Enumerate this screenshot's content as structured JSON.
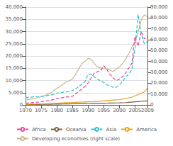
{
  "chart_data": {
    "type": "line",
    "x": [
      1970,
      1971,
      1972,
      1973,
      1974,
      1975,
      1976,
      1977,
      1978,
      1979,
      1980,
      1981,
      1982,
      1983,
      1984,
      1985,
      1986,
      1987,
      1988,
      1989,
      1990,
      1991,
      1992,
      1993,
      1994,
      1995,
      1996,
      1997,
      1998,
      1999,
      2000,
      2001,
      2002,
      2003,
      2004,
      2005,
      2006,
      2007,
      2008,
      2009
    ],
    "xlim": [
      1970,
      2009
    ],
    "xticks": [
      1970,
      1975,
      1980,
      1985,
      1990,
      1995,
      2000,
      2005,
      2009
    ],
    "ylim": [
      0,
      40000
    ],
    "yticks": [
      0,
      {
        "value": 5000,
        "label": "5,000"
      },
      {
        "value": 10000,
        "label": "10,000"
      },
      {
        "value": 15000,
        "label": "15,000"
      },
      {
        "value": 20000,
        "label": "20,000"
      },
      {
        "value": 25000,
        "label": "25,000"
      },
      {
        "value": 30000,
        "label": "30,000"
      },
      {
        "value": 35000,
        "label": "35,000"
      },
      {
        "value": 40000,
        "label": "40,000"
      }
    ],
    "y2lim": [
      0,
      90000
    ],
    "y2ticks": [
      0,
      {
        "value": 10000,
        "label": "10,000"
      },
      {
        "value": 20000,
        "label": "20,000"
      },
      {
        "value": 30000,
        "label": "30,000"
      },
      {
        "value": 40000,
        "label": "40,000"
      },
      {
        "value": 50000,
        "label": "50,000"
      },
      {
        "value": 60000,
        "label": "60,000"
      },
      {
        "value": 70000,
        "label": "70,000"
      },
      {
        "value": 80000,
        "label": "80,000"
      },
      {
        "value": 90000,
        "label": "90,000"
      }
    ],
    "grid": true,
    "legend": "bottom",
    "series": [
      {
        "name": "Africa",
        "color": "#e8429a",
        "line_style": "dashed",
        "values": [
          700,
          800,
          900,
          1000,
          1100,
          1300,
          1500,
          1700,
          1900,
          2200,
          2500,
          2800,
          3000,
          3200,
          3300,
          3500,
          4500,
          5500,
          6500,
          7500,
          9000,
          11000,
          13000,
          13500,
          14000,
          16000,
          14500,
          12500,
          11000,
          10000,
          10500,
          11500,
          13000,
          15000,
          17000,
          28000,
          24000,
          30000,
          27000,
          28000
        ]
      },
      {
        "name": "Oceania",
        "color": "#7a5c3a",
        "line_style": "solid",
        "values": [
          150,
          160,
          170,
          185,
          200,
          215,
          230,
          245,
          265,
          285,
          310,
          335,
          360,
          380,
          400,
          430,
          460,
          490,
          520,
          550,
          580,
          610,
          640,
          660,
          680,
          700,
          720,
          750,
          780,
          800,
          830,
          870,
          940,
          1050,
          1150,
          1250,
          1350,
          1450,
          1550,
          1650
        ]
      },
      {
        "name": "Asia",
        "color": "#29c0d8",
        "line_style": "dashed",
        "values": [
          3000,
          3100,
          3200,
          3300,
          3400,
          3500,
          3600,
          3800,
          4000,
          4300,
          4700,
          5000,
          5200,
          5300,
          5500,
          5800,
          6500,
          7500,
          8500,
          9500,
          12500,
          12500,
          11500,
          10500,
          9800,
          9200,
          8200,
          7800,
          7200,
          7200,
          8200,
          9500,
          11500,
          12500,
          14500,
          23000,
          37000,
          29000,
          25000,
          26000
        ]
      },
      {
        "name": "America",
        "color": "#e8a020",
        "line_style": "solid",
        "values": [
          250,
          270,
          300,
          340,
          390,
          440,
          490,
          550,
          600,
          660,
          720,
          780,
          840,
          890,
          940,
          1000,
          1050,
          1110,
          1160,
          1210,
          1260,
          1310,
          1360,
          1420,
          1530,
          1640,
          1750,
          1860,
          1970,
          2080,
          2180,
          2380,
          2600,
          2900,
          3200,
          3700,
          4200,
          4800,
          5300,
          6800
        ]
      },
      {
        "name": "Developing economies (right scale)",
        "color": "#c8b887",
        "line_style": "solid",
        "axis": "y2",
        "values": [
          4500,
          5000,
          5500,
          6000,
          6700,
          7500,
          8500,
          9500,
          11000,
          13000,
          15000,
          17000,
          19000,
          21000,
          22000,
          24000,
          28000,
          33000,
          38000,
          40000,
          43000,
          42000,
          38000,
          35000,
          34000,
          33500,
          33000,
          32000,
          30500,
          33000,
          35000,
          38000,
          42000,
          47000,
          53000,
          58000,
          67000,
          78000,
          83000,
          81000
        ]
      }
    ]
  }
}
